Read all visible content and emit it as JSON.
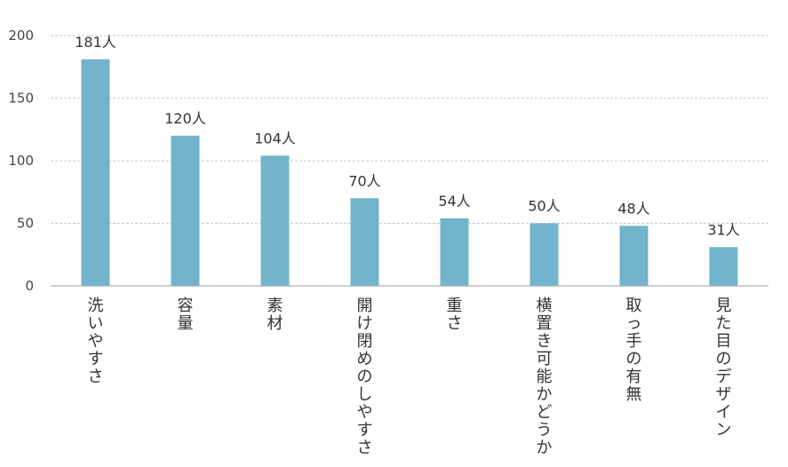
{
  "chart_data": {
    "type": "bar",
    "title": "",
    "xlabel": "",
    "ylabel": "",
    "ylim": [
      0,
      200
    ],
    "yticks": [
      0,
      50,
      100,
      150,
      200
    ],
    "grid": true,
    "bar_color": "#72B4CB",
    "categories": [
      "洗いやすさ",
      "容量",
      "素材",
      "開け閉めのしやすさ",
      "重さ",
      "横置き可能かどうか",
      "取っ手の有無",
      "見た目のデザイン"
    ],
    "values": [
      181,
      120,
      104,
      70,
      54,
      50,
      48,
      31
    ],
    "data_labels": [
      "181人",
      "120人",
      "104人",
      "70人",
      "54人",
      "50人",
      "48人",
      "31人"
    ]
  }
}
